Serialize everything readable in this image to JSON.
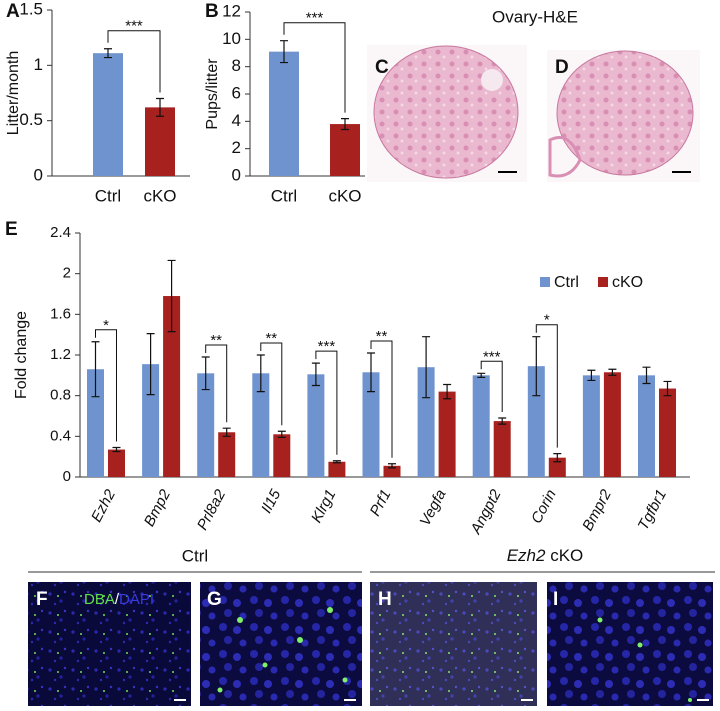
{
  "chart_data": [
    {
      "type": "bar",
      "panel_label": "A",
      "y_label": "Litter/month",
      "categories": [
        "Ctrl",
        "cKO"
      ],
      "values": [
        1.11,
        0.62
      ],
      "errors": [
        0.04,
        0.08
      ],
      "colors": [
        "#6f93cf",
        "#a7211f"
      ],
      "significance": "***",
      "ylim": [
        0,
        1.5
      ],
      "yticks": [
        0,
        0.5,
        1,
        1.5
      ]
    },
    {
      "type": "bar",
      "panel_label": "B",
      "y_label": "Pups/litter",
      "categories": [
        "Ctrl",
        "cKO"
      ],
      "values": [
        9.1,
        3.8
      ],
      "errors": [
        0.8,
        0.4
      ],
      "colors": [
        "#6f93cf",
        "#a7211f"
      ],
      "significance": "***",
      "ylim": [
        0,
        12
      ],
      "yticks": [
        0,
        2,
        4,
        6,
        8,
        10,
        12
      ]
    },
    {
      "type": "grouped-bar",
      "panel_label": "E",
      "y_label": "Fold change",
      "categories": [
        "Ezh2",
        "Bmp2",
        "Prl8a2",
        "Il15",
        "Klrg1",
        "Prf1",
        "Vegfa",
        "Angpt2",
        "Corin",
        "Bmpr2",
        "Tgfbr1"
      ],
      "series": [
        {
          "name": "Ctrl",
          "color": "#6f93cf",
          "values": [
            1.06,
            1.11,
            1.02,
            1.02,
            1.01,
            1.03,
            1.08,
            1.0,
            1.09,
            1.0,
            1.0
          ],
          "errors": [
            0.27,
            0.3,
            0.16,
            0.18,
            0.11,
            0.19,
            0.3,
            0.02,
            0.29,
            0.05,
            0.08
          ]
        },
        {
          "name": "cKO",
          "color": "#a7211f",
          "values": [
            0.27,
            1.78,
            0.44,
            0.42,
            0.15,
            0.11,
            0.84,
            0.55,
            0.19,
            1.03,
            0.87
          ],
          "errors": [
            0.02,
            0.35,
            0.04,
            0.03,
            0.01,
            0.02,
            0.07,
            0.03,
            0.04,
            0.03,
            0.07
          ]
        }
      ],
      "significance": [
        "*",
        null,
        "**",
        "**",
        "***",
        "**",
        null,
        "***",
        "*",
        null,
        null
      ],
      "ylim": [
        0,
        2.4
      ],
      "yticks": [
        0,
        0.4,
        0.8,
        1.2,
        1.6,
        2,
        2.4
      ],
      "legend": "upper right"
    }
  ],
  "figure": {
    "he_title": "Ovary-H&E",
    "panel_c": "C",
    "panel_d": "D",
    "panel_f": "F",
    "panel_g": "G",
    "panel_h": "H",
    "panel_i": "I",
    "ctrl_group": "Ctrl",
    "cko_gene": "Ezh2",
    "cko_group": "cKO",
    "stain_dba": "DBA",
    "stain_sep": "/",
    "stain_dapi": "DAPI"
  }
}
